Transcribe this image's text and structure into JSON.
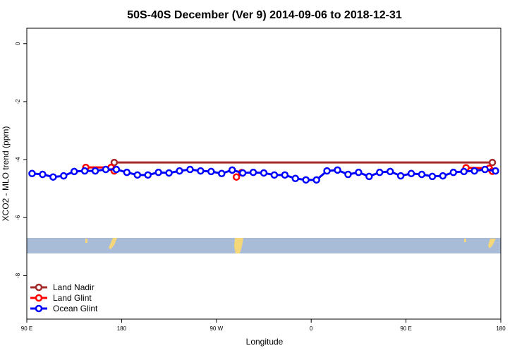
{
  "chart_data": {
    "type": "line",
    "title": "50S-40S December (Ver 9)   2014-09-06 to 2018-12-31",
    "x_label": "Longitude",
    "y_label": "XCO2 - MLO trend (ppm)",
    "xlim": [
      90,
      540
    ],
    "xticks": [
      {
        "value": 90,
        "label": "90 E"
      },
      {
        "value": 180,
        "label": "180"
      },
      {
        "value": 270,
        "label": "90 W"
      },
      {
        "value": 360,
        "label": "0"
      },
      {
        "value": 450,
        "label": "90 E"
      },
      {
        "value": 540,
        "label": "180"
      }
    ],
    "ylim": [
      -9.5,
      0.53
    ],
    "yticks": [
      0,
      -2,
      -4,
      -6,
      -8
    ],
    "legend": "bottom-left",
    "series": [
      {
        "name": "Land Nadir",
        "color": "#a52a2a",
        "x": [
          173,
          532
        ],
        "values": [
          -4.1,
          -4.1
        ]
      },
      {
        "name": "Land Glint",
        "color": "#ff0000",
        "x": [
          146,
          170,
          173,
          230,
          289,
          294,
          400,
          507,
          529,
          532
        ],
        "values": [
          -4.27,
          -4.27,
          -4.39,
          null,
          -4.6,
          -4.45,
          null,
          -4.28,
          -4.3,
          -4.4
        ]
      },
      {
        "name": "Ocean Glint",
        "color": "#0000ff",
        "x": [
          95,
          105,
          115,
          125,
          135,
          145,
          155,
          165,
          175,
          185,
          195,
          205,
          215,
          225,
          235,
          245,
          255,
          265,
          275,
          285,
          295,
          305,
          315,
          325,
          335,
          345,
          355,
          365,
          375,
          385,
          395,
          405,
          415,
          425,
          435,
          445,
          455,
          465,
          475,
          485,
          495,
          505,
          515,
          525,
          535
        ],
        "values": [
          -4.48,
          -4.51,
          -4.6,
          -4.56,
          -4.41,
          -4.39,
          -4.39,
          -4.34,
          -4.34,
          -4.44,
          -4.53,
          -4.53,
          -4.44,
          -4.46,
          -4.39,
          -4.34,
          -4.39,
          -4.41,
          -4.48,
          -4.36,
          -4.46,
          -4.44,
          -4.46,
          -4.53,
          -4.53,
          -4.65,
          -4.7,
          -4.7,
          -4.39,
          -4.36,
          -4.51,
          -4.44,
          -4.58,
          -4.44,
          -4.41,
          -4.56,
          -4.48,
          -4.51,
          -4.58,
          -4.56,
          -4.44,
          -4.41,
          -4.39,
          -4.34,
          -4.39
        ]
      }
    ]
  }
}
